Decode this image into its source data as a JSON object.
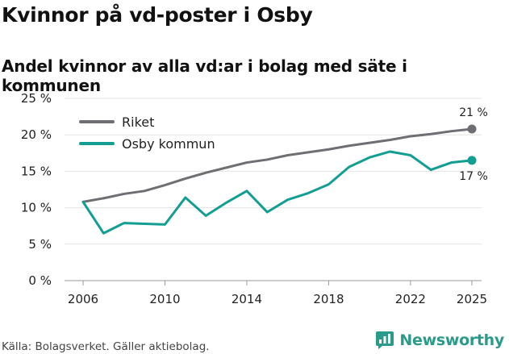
{
  "title": "Kvinnor på vd-poster i Osby",
  "subtitle": "Andel kvinnor av alla vd:ar i bolag med säte i kommunen",
  "source": "Källa: Bolagsverket. Gäller aktiebolag.",
  "brand": {
    "name": "Newsworthy",
    "icon": "newsworthy-logo-icon",
    "color": "#2a9a8a"
  },
  "chart_data": {
    "type": "line",
    "title": "Kvinnor på vd-poster i Osby",
    "subtitle": "Andel kvinnor av alla vd:ar i bolag med säte i kommunen",
    "xlabel": "",
    "ylabel": "",
    "x": [
      2006,
      2007,
      2008,
      2009,
      2010,
      2011,
      2012,
      2013,
      2014,
      2015,
      2016,
      2017,
      2018,
      2019,
      2020,
      2021,
      2022,
      2023,
      2024,
      2025
    ],
    "xlim": [
      2006,
      2025
    ],
    "ylim": [
      0,
      25
    ],
    "x_ticks": [
      2006,
      2010,
      2014,
      2018,
      2022,
      2025
    ],
    "x_tick_labels": [
      "2006",
      "2010",
      "2014",
      "2018",
      "2022",
      "2025"
    ],
    "y_ticks": [
      0,
      5,
      10,
      15,
      20,
      25
    ],
    "y_tick_labels": [
      "0 %",
      "5 %",
      "10 %",
      "15 %",
      "20 %",
      "25 %"
    ],
    "grid": "horizontal",
    "legend_position": "top-left",
    "series": [
      {
        "name": "Riket",
        "color": "#6e6e73",
        "values": [
          10.8,
          11.3,
          11.9,
          12.3,
          13.1,
          14.0,
          14.8,
          15.5,
          16.2,
          16.6,
          17.2,
          17.6,
          18.0,
          18.5,
          18.9,
          19.3,
          19.8,
          20.1,
          20.5,
          20.8
        ],
        "end_label": "21 %"
      },
      {
        "name": "Osby kommun",
        "color": "#139e92",
        "values": [
          10.8,
          6.5,
          7.9,
          7.8,
          7.7,
          11.4,
          8.9,
          10.7,
          12.3,
          9.4,
          11.1,
          12.0,
          13.2,
          15.6,
          16.9,
          17.7,
          17.2,
          15.2,
          16.2,
          16.5
        ],
        "end_label": "17 %"
      }
    ]
  }
}
